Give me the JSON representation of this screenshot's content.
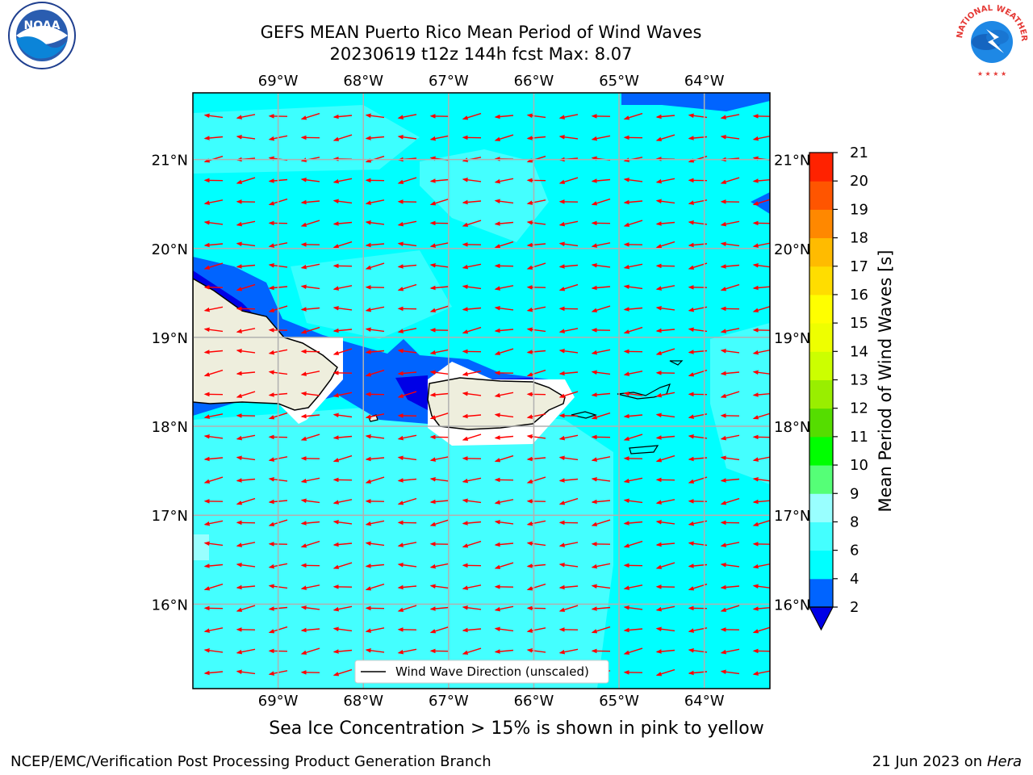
{
  "title": {
    "line1": "GEFS MEAN Puerto Rico Mean Period of Wind Waves",
    "line2": "20230619 t12z 144h fcst   Max: 8.07"
  },
  "logos": [
    {
      "name": "noaa-logo",
      "text": "NOAA"
    },
    {
      "name": "nws-logo",
      "text": "NATIONAL WEATHER SERVICE"
    }
  ],
  "map": {
    "lon_labels": [
      "69°W",
      "68°W",
      "67°W",
      "66°W",
      "65°W",
      "64°W"
    ],
    "lat_labels": [
      "21°N",
      "20°N",
      "19°N",
      "18°N",
      "17°N",
      "16°N"
    ],
    "lon_range": [
      -70.0,
      -63.23
    ],
    "lat_range": [
      15.05,
      21.75
    ],
    "gridlines": true,
    "wind_direction": "easterly (arrows point west)",
    "legend": {
      "label": "Wind Wave Direction (unscaled)",
      "placement": "bottom-center"
    },
    "colors": {
      "ocean_4_6": "#00ffff",
      "ocean_6_8": "#44ffff",
      "ocean_2_4": "#0064ff",
      "ocean_lt_2": "#0000e6",
      "land": "#eeeedd",
      "arrow": "#ff0000"
    }
  },
  "colorbar": {
    "title": "Mean Period of Wind Waves [s]",
    "ticks": [
      "2",
      "4",
      "6",
      "8",
      "9",
      "10",
      "11",
      "12",
      "13",
      "14",
      "15",
      "16",
      "17",
      "18",
      "19",
      "20",
      "21"
    ],
    "colors": [
      "#0064ff",
      "#00ffff",
      "#44ffff",
      "#99ffff",
      "#55ff77",
      "#00ff00",
      "#55dd00",
      "#99ee00",
      "#ccff00",
      "#eeff00",
      "#ffff00",
      "#ffdd00",
      "#ffbb00",
      "#ff8800",
      "#ff5500",
      "#ff2200"
    ],
    "under_color": "#0000e6",
    "extend": "min"
  },
  "subnote": "Sea Ice Concentration > 15% is shown in pink to yellow",
  "footer": {
    "left": "NCEP/EMC/Verification Post Processing Product Generation Branch",
    "right_date": "21 Jun 2023 on",
    "right_machine": "Hera"
  }
}
